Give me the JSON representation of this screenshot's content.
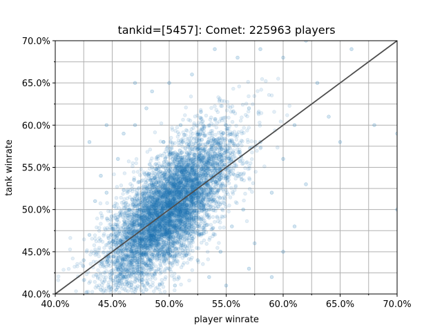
{
  "chart_data": {
    "type": "scatter",
    "title": "tankid=[5457]: Comet: 225963 players",
    "xlabel": "player winrate",
    "ylabel": "tank winrate",
    "xlim": [
      0.4,
      0.7
    ],
    "ylim": [
      0.4,
      0.7
    ],
    "x_ticks": [
      0.4,
      0.45,
      0.5,
      0.55,
      0.6,
      0.65,
      0.7
    ],
    "x_tick_labels": [
      "40.0%",
      "45.0%",
      "50.0%",
      "55.0%",
      "60.0%",
      "65.0%",
      "70.0%"
    ],
    "y_ticks": [
      0.4,
      0.45,
      0.5,
      0.55,
      0.6,
      0.65,
      0.7
    ],
    "y_tick_labels": [
      "40.0%",
      "45.0%",
      "50.0%",
      "55.0%",
      "60.0%",
      "65.0%",
      "70.0%"
    ],
    "minor_ticks_step": 0.025,
    "grid": true,
    "point_color": "#1f77b4",
    "point_alpha": 0.12,
    "reference_line": {
      "from": [
        0.4,
        0.4
      ],
      "to": [
        0.7,
        0.7
      ],
      "color": "#4d4d4d"
    },
    "point_distribution": {
      "player_count": 225963,
      "center": [
        0.5,
        0.5
      ],
      "x_std": 0.028,
      "y_std": 0.045,
      "correlation": 0.7
    },
    "series": [
      {
        "points": [
          [
            0.44,
            0.54
          ],
          [
            0.445,
            0.52
          ],
          [
            0.45,
            0.48
          ],
          [
            0.455,
            0.56
          ],
          [
            0.46,
            0.59
          ],
          [
            0.465,
            0.5
          ],
          [
            0.47,
            0.6
          ],
          [
            0.475,
            0.46
          ],
          [
            0.48,
            0.62
          ],
          [
            0.485,
            0.55
          ],
          [
            0.49,
            0.51
          ],
          [
            0.495,
            0.58
          ],
          [
            0.5,
            0.47
          ],
          [
            0.505,
            0.53
          ],
          [
            0.51,
            0.6
          ],
          [
            0.515,
            0.49
          ],
          [
            0.52,
            0.55
          ],
          [
            0.525,
            0.44
          ],
          [
            0.53,
            0.57
          ],
          [
            0.535,
            0.5
          ],
          [
            0.54,
            0.52
          ],
          [
            0.545,
            0.45
          ],
          [
            0.55,
            0.6
          ],
          [
            0.555,
            0.48
          ],
          [
            0.56,
            0.54
          ],
          [
            0.565,
            0.5
          ],
          [
            0.57,
            0.62
          ],
          [
            0.575,
            0.46
          ],
          [
            0.58,
            0.58
          ],
          [
            0.59,
            0.52
          ],
          [
            0.6,
            0.56
          ],
          [
            0.61,
            0.6
          ],
          [
            0.62,
            0.53
          ],
          [
            0.63,
            0.65
          ],
          [
            0.64,
            0.61
          ],
          [
            0.65,
            0.58
          ],
          [
            0.66,
            0.69
          ],
          [
            0.68,
            0.6
          ],
          [
            0.7,
            0.5
          ],
          [
            0.7,
            0.59
          ],
          [
            0.425,
            0.44
          ],
          [
            0.43,
            0.47
          ],
          [
            0.435,
            0.51
          ],
          [
            0.43,
            0.58
          ],
          [
            0.445,
            0.6
          ],
          [
            0.47,
            0.65
          ],
          [
            0.485,
            0.64
          ],
          [
            0.5,
            0.65
          ],
          [
            0.52,
            0.66
          ],
          [
            0.54,
            0.69
          ],
          [
            0.56,
            0.68
          ],
          [
            0.58,
            0.69
          ],
          [
            0.6,
            0.68
          ],
          [
            0.62,
            0.7
          ],
          [
            0.57,
            0.43
          ],
          [
            0.55,
            0.41
          ],
          [
            0.535,
            0.42
          ],
          [
            0.6,
            0.45
          ],
          [
            0.61,
            0.48
          ],
          [
            0.59,
            0.42
          ],
          [
            0.505,
            0.41
          ],
          [
            0.48,
            0.405
          ],
          [
            0.46,
            0.42
          ],
          [
            0.44,
            0.405
          ],
          [
            0.455,
            0.44
          ]
        ]
      }
    ]
  }
}
